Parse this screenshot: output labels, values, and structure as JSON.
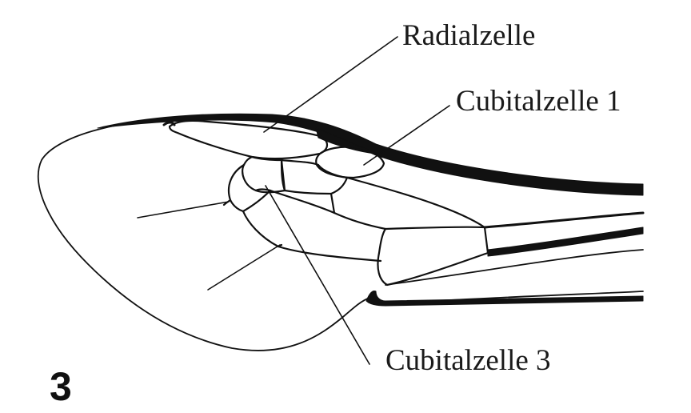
{
  "figure": {
    "number": "3",
    "labels": {
      "radial": "Radialzelle",
      "cubital_1": "Cubitalzelle 1",
      "cubital_3": "Cubitalzelle 3"
    }
  }
}
